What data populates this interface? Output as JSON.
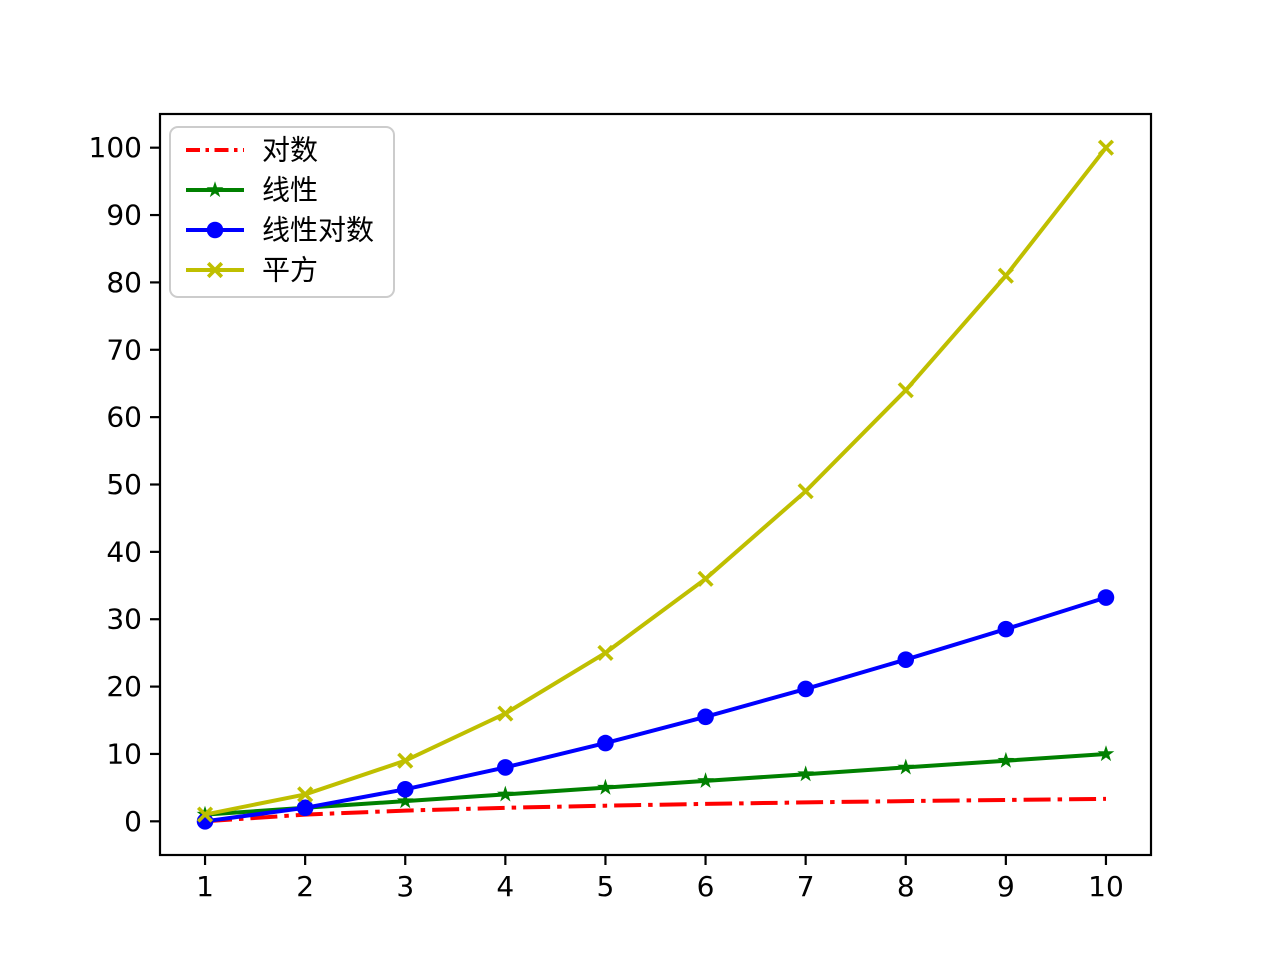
{
  "chart_data": {
    "type": "line",
    "title": "",
    "xlabel": "",
    "ylabel": "",
    "grid": false,
    "x": [
      1,
      2,
      3,
      4,
      5,
      6,
      7,
      8,
      9,
      10
    ],
    "xlim": [
      0.55,
      10.45
    ],
    "ylim": [
      -5,
      105
    ],
    "xticks": [
      1,
      2,
      3,
      4,
      5,
      6,
      7,
      8,
      9,
      10
    ],
    "yticks": [
      0,
      10,
      20,
      30,
      40,
      50,
      60,
      70,
      80,
      90,
      100
    ],
    "axis_color": "#000000",
    "legend": {
      "position": "upper left",
      "border_color": "#cccccc",
      "background": "#ffffff"
    },
    "series": [
      {
        "id": "log",
        "label": "对数",
        "color": "#ff0000",
        "linestyle": "dashdot",
        "marker": "none",
        "values": [
          0,
          1,
          1.585,
          2,
          2.322,
          2.585,
          2.807,
          3,
          3.17,
          3.322
        ]
      },
      {
        "id": "linear",
        "label": "线性",
        "color": "#008000",
        "linestyle": "solid",
        "marker": "star",
        "values": [
          1,
          2,
          3,
          4,
          5,
          6,
          7,
          8,
          9,
          10
        ]
      },
      {
        "id": "linear-log",
        "label": "线性对数",
        "color": "#0000ff",
        "linestyle": "solid",
        "marker": "circle",
        "values": [
          0,
          2,
          4.755,
          8,
          11.61,
          15.51,
          19.651,
          24,
          28.529,
          33.219
        ]
      },
      {
        "id": "square",
        "label": "平方",
        "color": "#bfbf00",
        "linestyle": "solid",
        "marker": "x",
        "values": [
          1,
          4,
          9,
          16,
          25,
          36,
          49,
          64,
          81,
          100
        ]
      }
    ]
  }
}
